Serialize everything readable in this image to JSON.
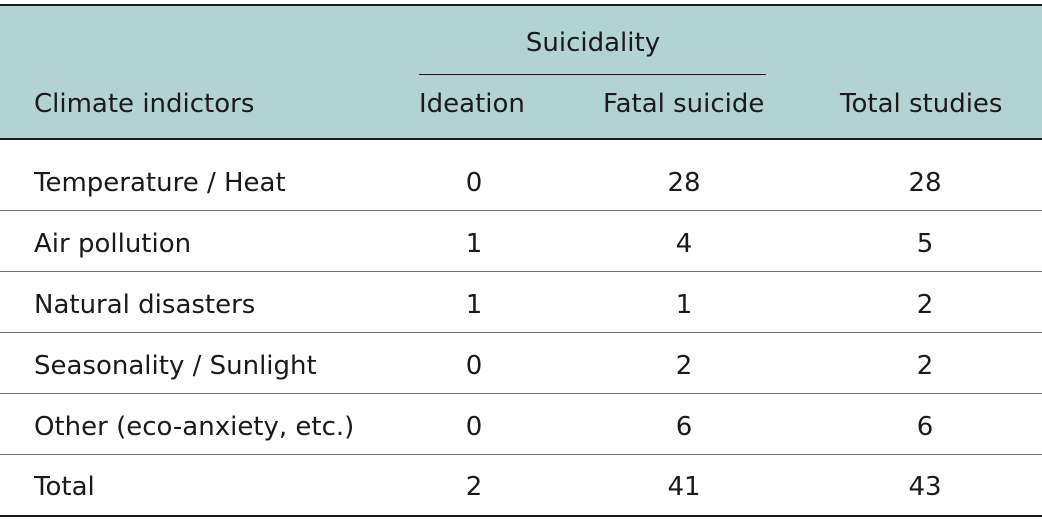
{
  "table": {
    "group_header": "Suicidality",
    "columns": [
      "Climate indictors",
      "Ideation",
      "Fatal suicide",
      "Total studies"
    ],
    "rows": [
      {
        "label": "Temperature / Heat",
        "ideation": "0",
        "fatal": "28",
        "total": "28"
      },
      {
        "label": "Air pollution",
        "ideation": "1",
        "fatal": "4",
        "total": "5"
      },
      {
        "label": "Natural disasters",
        "ideation": "1",
        "fatal": "1",
        "total": "2"
      },
      {
        "label": "Seasonality / Sunlight",
        "ideation": "0",
        "fatal": "2",
        "total": "2"
      },
      {
        "label": "Other (eco-anxiety, etc.)",
        "ideation": "0",
        "fatal": "6",
        "total": "6"
      },
      {
        "label": "Total",
        "ideation": "2",
        "fatal": "41",
        "total": "43"
      }
    ]
  }
}
